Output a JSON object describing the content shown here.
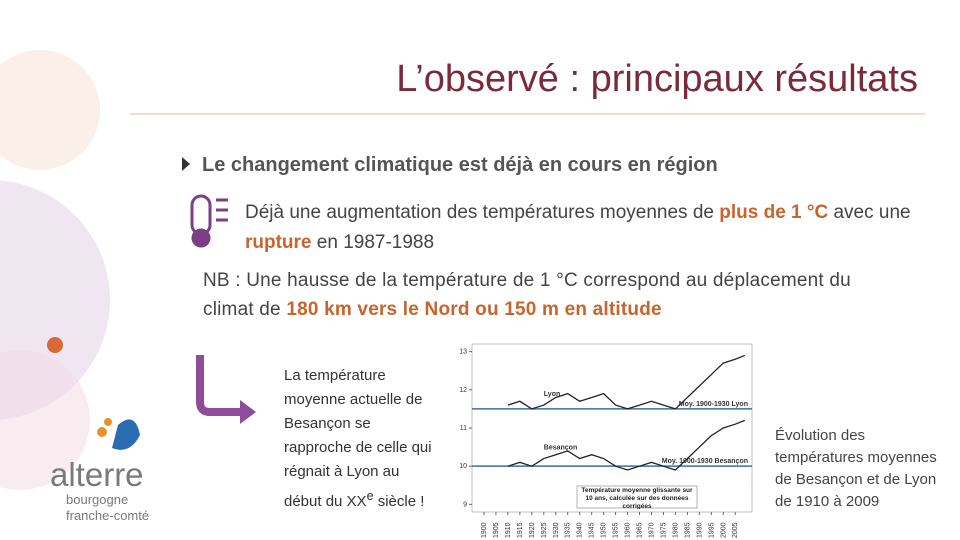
{
  "header": {
    "title": "L’observé : principaux résultats"
  },
  "bullet": "Le changement climatique est déjà en cours en région",
  "point": [
    {
      "text": "Déjà une augmentation des températures moyennes de ",
      "highlight": false
    },
    {
      "text": "plus de 1 °C",
      "highlight": true
    },
    {
      "text": " avec une ",
      "highlight": false
    },
    {
      "text": "rupture",
      "highlight": true
    },
    {
      "text": " en 1987-1988",
      "highlight": false
    }
  ],
  "note": [
    {
      "text": "NB : Une hausse de la température de 1 °C correspond au déplacement du climat de ",
      "highlight": false
    },
    {
      "text": "180 km vers le Nord ou 150 m en altitude",
      "highlight": true
    }
  ],
  "callout": {
    "text": "La température moyenne actuelle de Besançon se rapproche de celle qui régnait à Lyon au début du XX",
    "sup": "e",
    "end": " siècle !"
  },
  "caption": "Évolution des températures moyennes de Besançon et de Lyon de 1910 à 2009",
  "logo": {
    "name": "alterre",
    "region_1": "bourgogne",
    "region_2": "franche-comté"
  },
  "figure": {
    "type": "line",
    "note": "Température moyenne glissante sur 10 ans, calculée sur des données corrigées",
    "x": [
      1910,
      1915,
      1920,
      1925,
      1930,
      1935,
      1940,
      1945,
      1950,
      1955,
      1960,
      1965,
      1970,
      1975,
      1980,
      1985,
      1990,
      1995,
      2000,
      2005,
      2009
    ],
    "series": [
      {
        "name": "Lyon",
        "color": "#222222",
        "values": [
          11.6,
          11.7,
          11.5,
          11.6,
          11.8,
          11.9,
          11.7,
          11.8,
          11.9,
          11.6,
          11.5,
          11.6,
          11.7,
          11.6,
          11.5,
          11.8,
          12.1,
          12.4,
          12.7,
          12.8,
          12.9
        ]
      },
      {
        "name": "Besançon",
        "color": "#222222",
        "values": [
          10.0,
          10.1,
          10.0,
          10.2,
          10.3,
          10.4,
          10.2,
          10.3,
          10.2,
          10.0,
          9.9,
          10.0,
          10.1,
          10.0,
          9.9,
          10.2,
          10.5,
          10.8,
          11.0,
          11.1,
          11.2
        ]
      }
    ],
    "reference_lines": [
      {
        "value": 11.5,
        "label": "Moy. 1900-1930 Lyon",
        "color": "#3a6ea5"
      },
      {
        "value": 10.0,
        "label": "Moy. 1900-1930 Besançon",
        "color": "#3a6ea5"
      }
    ],
    "xlim": [
      1895,
      2012
    ],
    "xticks": [
      1900,
      1905,
      1910,
      1915,
      1920,
      1925,
      1930,
      1935,
      1940,
      1945,
      1950,
      1955,
      1960,
      1965,
      1970,
      1975,
      1980,
      1985,
      1990,
      1995,
      2000,
      2005
    ],
    "ylim": [
      8.8,
      13.2
    ],
    "yticks": [
      9,
      10,
      11,
      12,
      13
    ]
  }
}
